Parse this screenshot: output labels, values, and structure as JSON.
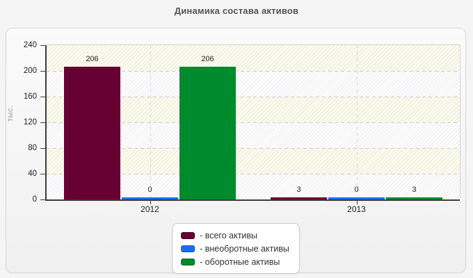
{
  "title": "Динамика состава активов",
  "chart_data": {
    "type": "bar",
    "title": "Динамика состава активов",
    "categories": [
      "2012",
      "2013"
    ],
    "series": [
      {
        "label": "- всего активы",
        "color": "#660032",
        "swatch_border": "#470023",
        "values": [
          206,
          3
        ]
      },
      {
        "label": "- внеобротные активы",
        "color": "#1c6cf0",
        "swatch_border": "#0f52c4",
        "values": [
          0,
          0
        ]
      },
      {
        "label": "- оборотные активы",
        "color": "#008a2e",
        "swatch_border": "#006a24",
        "values": [
          206,
          3
        ]
      }
    ],
    "ylabel": "тыс.",
    "ylim": [
      0,
      240
    ],
    "yticks": [
      0,
      40,
      80,
      120,
      160,
      200,
      240
    ],
    "bar_value_labels": {
      "2012": [
        206,
        0,
        206
      ],
      "2013": [
        3,
        0,
        3
      ]
    },
    "grid": "dashed horizontal gridlines + dashed vertical line at each category center",
    "plot_background": "alternating ivory/white horizontal bands with diagonal hatch",
    "legend_position": "bottom-center"
  },
  "colors": {
    "page_background": "#f5f5f5",
    "panel_background": "#f4f4f4",
    "band_ivory": "#fbfbec",
    "band_white": "#fdfdfe",
    "axis": "#3c3c3c",
    "gridline": "#cccccc",
    "title_text": "#545454",
    "ylabel_text": "#9c9c9c"
  }
}
